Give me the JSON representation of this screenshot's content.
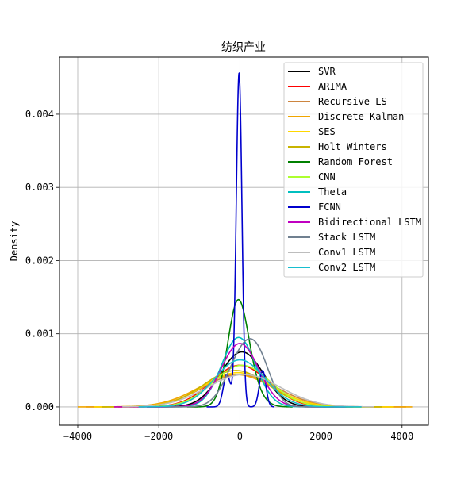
{
  "chart_data": {
    "type": "line",
    "title": "纺织产业",
    "xlabel": "",
    "ylabel": "Density",
    "xlim": [
      -4450,
      4650
    ],
    "ylim": [
      -0.00025,
      0.00478
    ],
    "xticks": [
      -4000,
      -2000,
      0,
      2000,
      4000
    ],
    "xtick_labels": [
      "−4000",
      "−2000",
      "0",
      "2000",
      "4000"
    ],
    "yticks": [
      0.0,
      0.001,
      0.002,
      0.003,
      0.004
    ],
    "ytick_labels": [
      "0.000",
      "0.001",
      "0.002",
      "0.003",
      "0.004"
    ],
    "grid": true,
    "legend_position": "top-right",
    "series": [
      {
        "name": "SVR",
        "color": "#000000",
        "components": [
          {
            "mu": 50,
            "sigma": 530,
            "w": 1
          }
        ],
        "x_range": [
          -2300,
          2800
        ]
      },
      {
        "name": "ARIMA",
        "color": "#ff0000",
        "components": [
          {
            "mu": 0,
            "sigma": 700,
            "w": 1
          }
        ],
        "x_range": [
          -3000,
          3300
        ]
      },
      {
        "name": "Recursive LS",
        "color": "#cd853f",
        "components": [
          {
            "mu": 0,
            "sigma": 900,
            "w": 1
          }
        ],
        "x_range": [
          -3800,
          4100
        ]
      },
      {
        "name": "Discrete Kalman",
        "color": "#f0a500",
        "components": [
          {
            "mu": -100,
            "sigma": 900,
            "w": 1
          }
        ],
        "x_range": [
          -4000,
          4250
        ]
      },
      {
        "name": "SES",
        "color": "#ffd700",
        "components": [
          {
            "mu": -50,
            "sigma": 850,
            "w": 1
          }
        ],
        "x_range": [
          -3600,
          3800
        ]
      },
      {
        "name": "Holt Winters",
        "color": "#c8b400",
        "components": [
          {
            "mu": -100,
            "sigma": 800,
            "w": 1
          }
        ],
        "x_range": [
          -3400,
          3500
        ]
      },
      {
        "name": "Random Forest",
        "color": "#008000",
        "components": [
          {
            "mu": -60,
            "sigma": 250,
            "w": 0.8
          },
          {
            "mu": 200,
            "sigma": 300,
            "w": 0.2
          }
        ],
        "x_range": [
          -1300,
          1300
        ]
      },
      {
        "name": "CNN",
        "color": "#adff2f",
        "components": [
          {
            "mu": 50,
            "sigma": 700,
            "w": 1
          }
        ],
        "x_range": [
          -2800,
          3200
        ]
      },
      {
        "name": "Theta",
        "color": "#00bfbf",
        "components": [
          {
            "mu": -30,
            "sigma": 420,
            "w": 1
          }
        ],
        "x_range": [
          -2000,
          2200
        ]
      },
      {
        "name": "FCNN",
        "color": "#0000cd",
        "components": [
          {
            "mu": -20,
            "sigma": 70,
            "w": 0.8
          },
          {
            "mu": -320,
            "sigma": 90,
            "w": 0.1
          },
          {
            "mu": 560,
            "sigma": 80,
            "w": 0.1
          }
        ],
        "x_range": [
          -820,
          850
        ]
      },
      {
        "name": "Bidirectional LSTM",
        "color": "#c000c0",
        "components": [
          {
            "mu": 0,
            "sigma": 460,
            "w": 1
          }
        ],
        "x_range": [
          -3100,
          2600
        ]
      },
      {
        "name": "Stack LSTM",
        "color": "#708090",
        "components": [
          {
            "mu": 100,
            "sigma": 400,
            "w": 0.75
          },
          {
            "mu": 500,
            "sigma": 300,
            "w": 0.25
          }
        ],
        "x_range": [
          -1900,
          2500
        ]
      },
      {
        "name": "Conv1 LSTM",
        "color": "#bdbdbd",
        "components": [
          {
            "mu": 100,
            "sigma": 900,
            "w": 1
          }
        ],
        "x_range": [
          -2900,
          3300
        ]
      },
      {
        "name": "Conv2 LSTM",
        "color": "#17becf",
        "components": [
          {
            "mu": 0,
            "sigma": 620,
            "w": 1
          }
        ],
        "x_range": [
          -2500,
          3000
        ]
      }
    ]
  }
}
